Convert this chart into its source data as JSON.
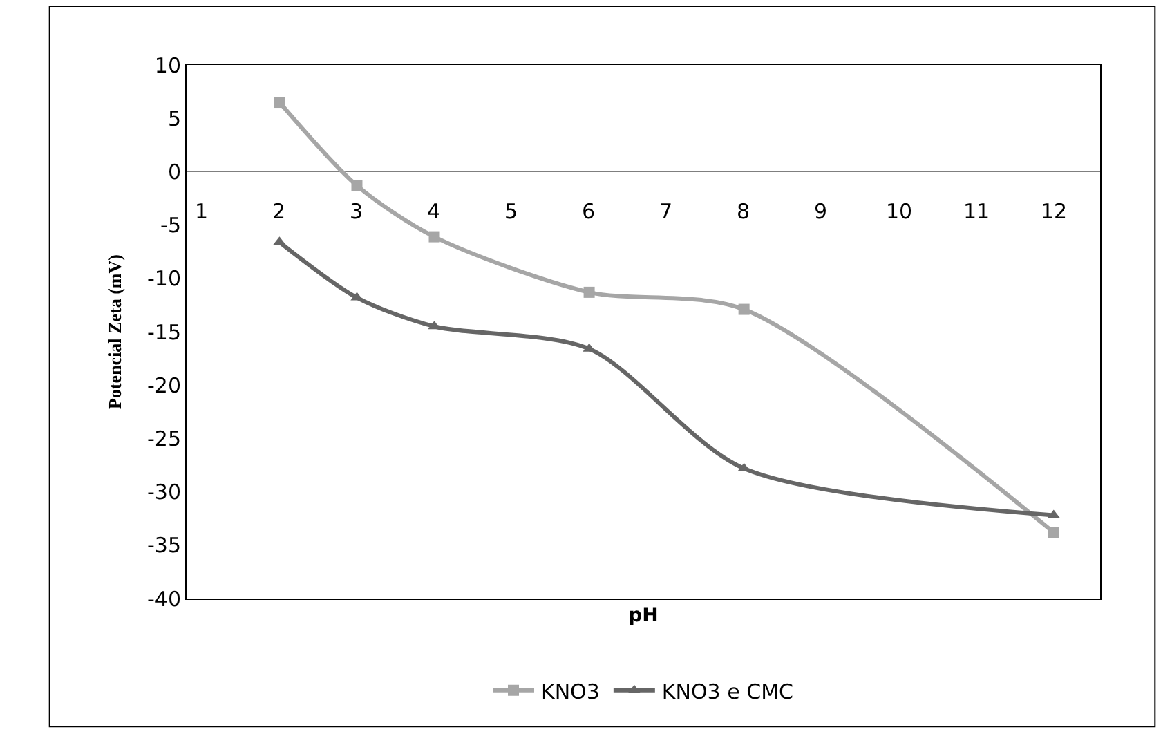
{
  "chart_data": {
    "type": "line",
    "xlabel": "pH",
    "ylabel": "Potencial Zeta (mV)",
    "x": [
      2,
      3,
      4,
      6,
      8,
      12
    ],
    "series": [
      {
        "name": "KNO3",
        "color": "#a6a6a6",
        "marker": "square",
        "values": [
          6.5,
          -1.3,
          -6.1,
          -11.3,
          -12.9,
          -33.8
        ]
      },
      {
        "name": "KNO3 e CMC",
        "color": "#666666",
        "marker": "triangle",
        "values": [
          -6.6,
          -11.8,
          -14.5,
          -16.6,
          -27.8,
          -32.2
        ]
      }
    ],
    "xlim": [
      0.8,
      12.6
    ],
    "xticks": [
      1,
      2,
      3,
      4,
      5,
      6,
      7,
      8,
      9,
      10,
      11,
      12
    ],
    "ylim": [
      -40,
      10
    ],
    "yticks": [
      10,
      5,
      0,
      -5,
      -10,
      -15,
      -20,
      -25,
      -30,
      -35,
      -40
    ],
    "legend": "bottom"
  }
}
